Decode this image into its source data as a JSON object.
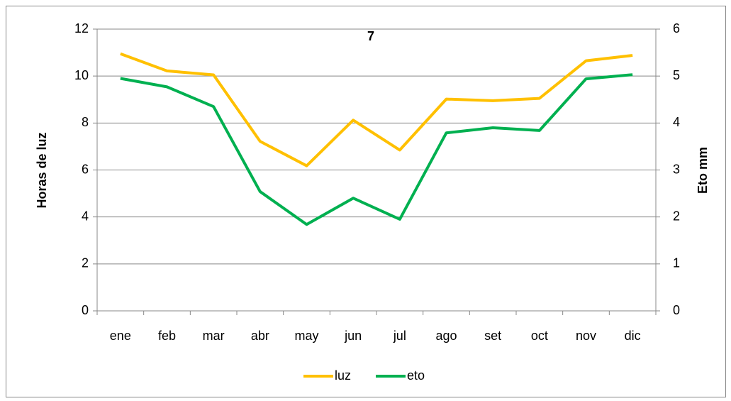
{
  "chart_data": {
    "type": "line",
    "title": "7",
    "categories": [
      "ene",
      "feb",
      "mar",
      "abr",
      "may",
      "jun",
      "jul",
      "ago",
      "set",
      "oct",
      "nov",
      "dic"
    ],
    "series": [
      {
        "name": "luz",
        "color": "#ffc000",
        "values": [
          10.95,
          10.22,
          10.05,
          7.22,
          6.18,
          8.12,
          6.85,
          9.02,
          8.95,
          9.05,
          10.65,
          10.88
        ]
      },
      {
        "name": "eto",
        "color": "#00b050",
        "axis": "y2",
        "values": [
          4.95,
          4.77,
          4.35,
          2.54,
          1.84,
          2.4,
          1.95,
          3.79,
          3.9,
          3.84,
          4.94,
          5.03
        ]
      }
    ],
    "ylabel": "Horas de luz",
    "y2label": "Eto mm",
    "ylim": [
      0,
      12
    ],
    "yticks": [
      0,
      2,
      4,
      6,
      8,
      10,
      12
    ],
    "y2lim": [
      0,
      6
    ],
    "y2ticks": [
      0,
      1,
      2,
      3,
      4,
      5,
      6
    ],
    "grid": true,
    "legend": "bottom"
  }
}
